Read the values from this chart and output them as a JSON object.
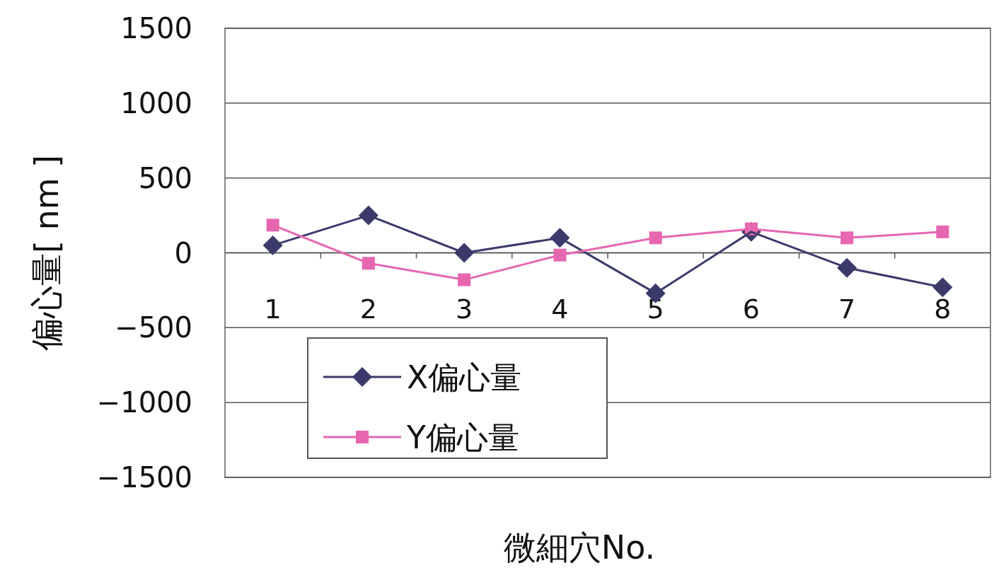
{
  "chart_data": {
    "type": "line",
    "xlabel": "微細穴No.",
    "ylabel": "偏心量[ nm ]",
    "categories": [
      "1",
      "2",
      "3",
      "4",
      "5",
      "6",
      "7",
      "8"
    ],
    "series": [
      {
        "name": "X偏心量",
        "color": "#3b3b6b",
        "marker": "diamond",
        "values": [
          50,
          250,
          0,
          100,
          -270,
          140,
          -100,
          -230
        ]
      },
      {
        "name": "Y偏心量",
        "color": "#e667b0",
        "marker": "square",
        "values": [
          185,
          -70,
          -180,
          -15,
          100,
          160,
          100,
          140
        ]
      }
    ],
    "ylim": [
      -1500,
      1500
    ],
    "yticks": [
      -1500,
      -1000,
      -500,
      0,
      500,
      1000,
      1500
    ],
    "grid": "y",
    "legend": "bottom left",
    "line_style": "solid"
  }
}
